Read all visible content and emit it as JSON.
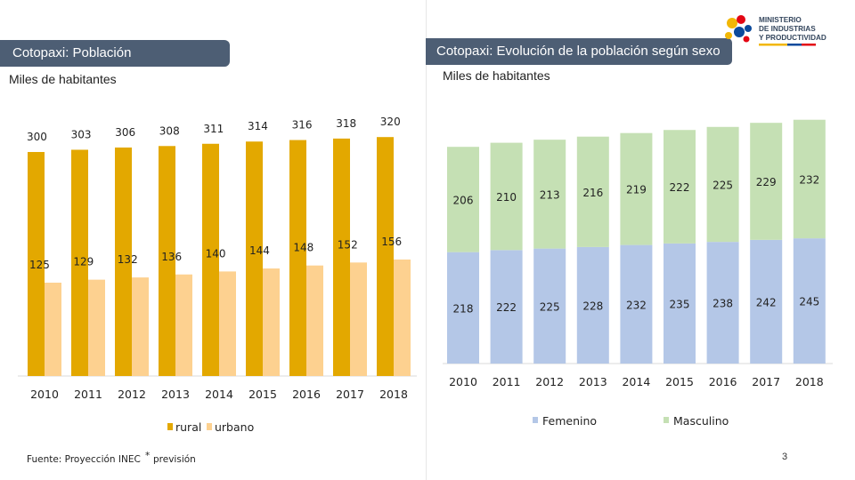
{
  "left": {
    "title": "Cotopaxi:  Población",
    "subtitle": "Miles de habitantes",
    "footnote_source": "Fuente: Proyección INEC",
    "footnote_marker": "*",
    "footnote_note": "previsión"
  },
  "right": {
    "title": "Cotopaxi: Evolución de la población según sexo",
    "subtitle": "Miles de habitantes"
  },
  "logo": {
    "line1": "MINISTERIO",
    "line2": "DE INDUSTRIAS",
    "line3": "Y PRODUCTIVIDAD"
  },
  "page_number": "3",
  "colors": {
    "title_bar": "#4d5e74",
    "rural": "#e3a800",
    "urbano": "#fdd190",
    "femenino": "#b4c7e7",
    "masculino": "#c5e0b4"
  },
  "chart_data": [
    {
      "type": "bar",
      "title": "Cotopaxi:  Población",
      "ylabel": "Miles de habitantes",
      "categories": [
        "2010",
        "2011",
        "2012",
        "2013",
        "2014",
        "2015",
        "2016",
        "2017",
        "2018"
      ],
      "series": [
        {
          "name": "rural",
          "values": [
            300,
            303,
            306,
            308,
            311,
            314,
            316,
            318,
            320
          ]
        },
        {
          "name": "urbano",
          "values": [
            125,
            129,
            132,
            136,
            140,
            144,
            148,
            152,
            156
          ]
        }
      ],
      "legend": "bottom"
    },
    {
      "type": "bar",
      "stacked": true,
      "title": "Cotopaxi: Evolución de la población según sexo",
      "ylabel": "Miles de habitantes",
      "categories": [
        "2010",
        "2011",
        "2012",
        "2013",
        "2014",
        "2015",
        "2016",
        "2017",
        "2018"
      ],
      "series": [
        {
          "name": "Femenino",
          "values": [
            218,
            222,
            225,
            228,
            232,
            235,
            238,
            242,
            245
          ]
        },
        {
          "name": "Masculino",
          "values": [
            206,
            210,
            213,
            216,
            219,
            222,
            225,
            229,
            232
          ]
        }
      ],
      "legend": "bottom"
    }
  ]
}
